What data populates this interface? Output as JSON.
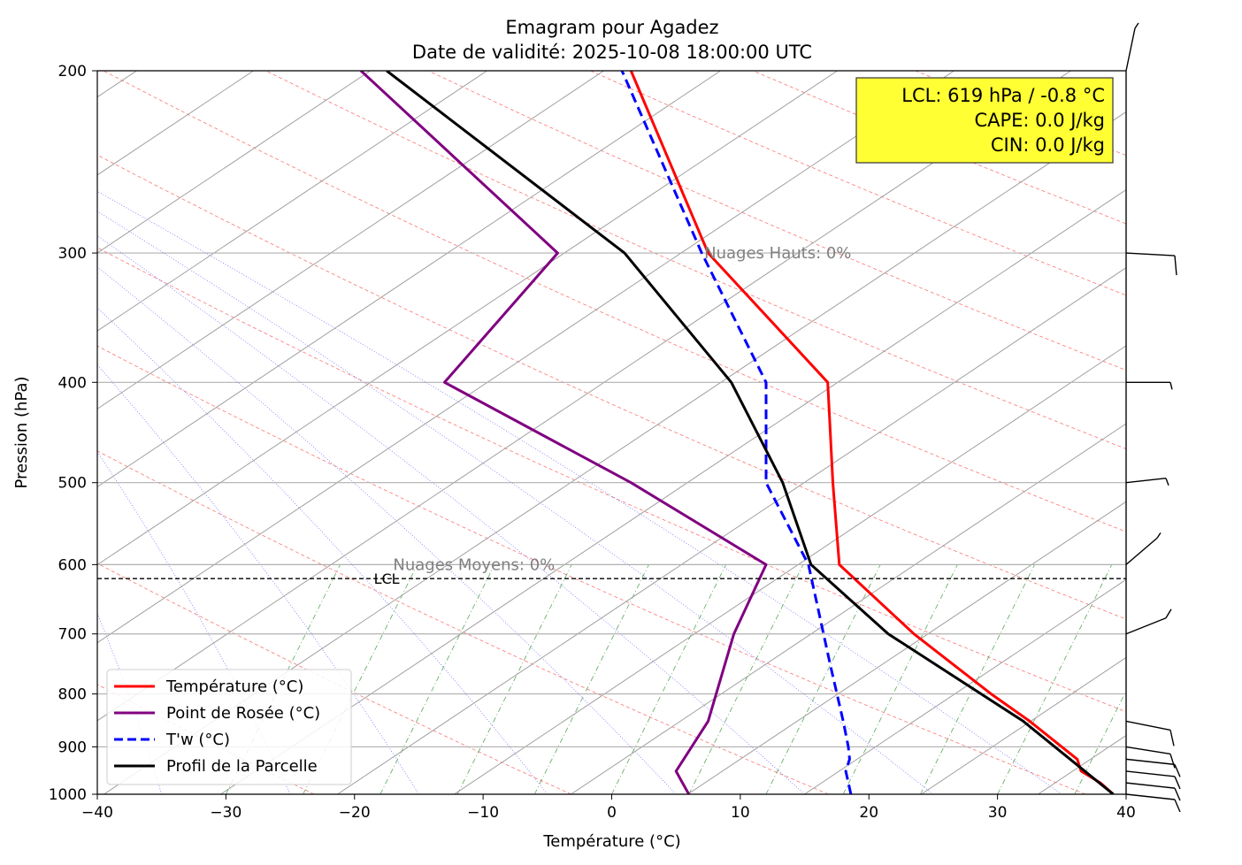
{
  "chart_data": {
    "type": "line",
    "title": "Emagram pour Agadez",
    "subtitle": "Date de validité: 2025-10-08 18:00:00 UTC",
    "xlabel": "Température (°C)",
    "ylabel": "Pression (hPa)",
    "xlim": [
      -40,
      40
    ],
    "ylim": [
      1000,
      200
    ],
    "y_scale": "log",
    "grid": true,
    "legend_position": "bottom-left",
    "x_ticks": [
      "−40",
      "−30",
      "−20",
      "−10",
      "0",
      "10",
      "20",
      "30",
      "40"
    ],
    "y_ticks": [
      "200",
      "300",
      "400",
      "500",
      "600",
      "700",
      "800",
      "900",
      "1000"
    ],
    "pressure_levels": [
      1000,
      975,
      950,
      925,
      900,
      850,
      800,
      700,
      600,
      500,
      400,
      300,
      200
    ],
    "series": [
      {
        "name": "Température (°C)",
        "color": "#ff0000",
        "style": "solid",
        "points": [
          [
            39.0,
            1000
          ],
          [
            38.0,
            975
          ],
          [
            36.5,
            950
          ],
          [
            36.2,
            925
          ],
          [
            32.5,
            850
          ],
          [
            29.5,
            800
          ],
          [
            23.5,
            700
          ],
          [
            17.7,
            600
          ],
          [
            17.2,
            500
          ],
          [
            16.8,
            400
          ],
          [
            7.5,
            300
          ],
          [
            1.5,
            200
          ]
        ]
      },
      {
        "name": "Point de Rosée (°C)",
        "color": "#800080",
        "style": "solid",
        "points": [
          [
            6.0,
            1000
          ],
          [
            5.5,
            975
          ],
          [
            5.0,
            950
          ],
          [
            7.5,
            850
          ],
          [
            9.5,
            700
          ],
          [
            12.0,
            600
          ],
          [
            1.5,
            500
          ],
          [
            -13.0,
            400
          ],
          [
            -4.2,
            300
          ],
          [
            -19.5,
            200
          ]
        ]
      },
      {
        "name": "T'w (°C)",
        "color": "#0000ff",
        "style": "dashed",
        "points": [
          [
            18.6,
            1000
          ],
          [
            18.2,
            950
          ],
          [
            18.5,
            925
          ],
          [
            18.4,
            900
          ],
          [
            18.0,
            850
          ],
          [
            17.0,
            750
          ],
          [
            15.3,
            600
          ],
          [
            12.0,
            500
          ],
          [
            12.0,
            470
          ],
          [
            12.0,
            400
          ],
          [
            7.0,
            300
          ],
          [
            0.8,
            200
          ]
        ]
      },
      {
        "name": "Profil de la Parcelle",
        "color": "#000000",
        "style": "solid",
        "points": [
          [
            39.0,
            1000
          ],
          [
            32.0,
            850
          ],
          [
            21.5,
            700
          ],
          [
            15.5,
            600
          ],
          [
            13.3,
            500
          ],
          [
            9.3,
            400
          ],
          [
            1.0,
            300
          ],
          [
            -17.5,
            200
          ]
        ]
      }
    ],
    "lcl": {
      "pressure": 619,
      "label": "LCL"
    },
    "annotations": [
      {
        "text": "Nuages Hauts: 0%",
        "x": 7.2,
        "pressure": 300
      },
      {
        "text": "Nuages Moyens: 0%",
        "x": -17.0,
        "pressure": 600
      }
    ],
    "info_box": {
      "lines": [
        "LCL: 619 hPa / -0.8 °C",
        "CAPE: 0.0 J/kg",
        "CIN: 0.0 J/kg"
      ],
      "background": "#ffff33"
    },
    "wind_barb_levels": [
      1000,
      975,
      950,
      925,
      900,
      850,
      700,
      600,
      500,
      400,
      300,
      200
    ]
  }
}
